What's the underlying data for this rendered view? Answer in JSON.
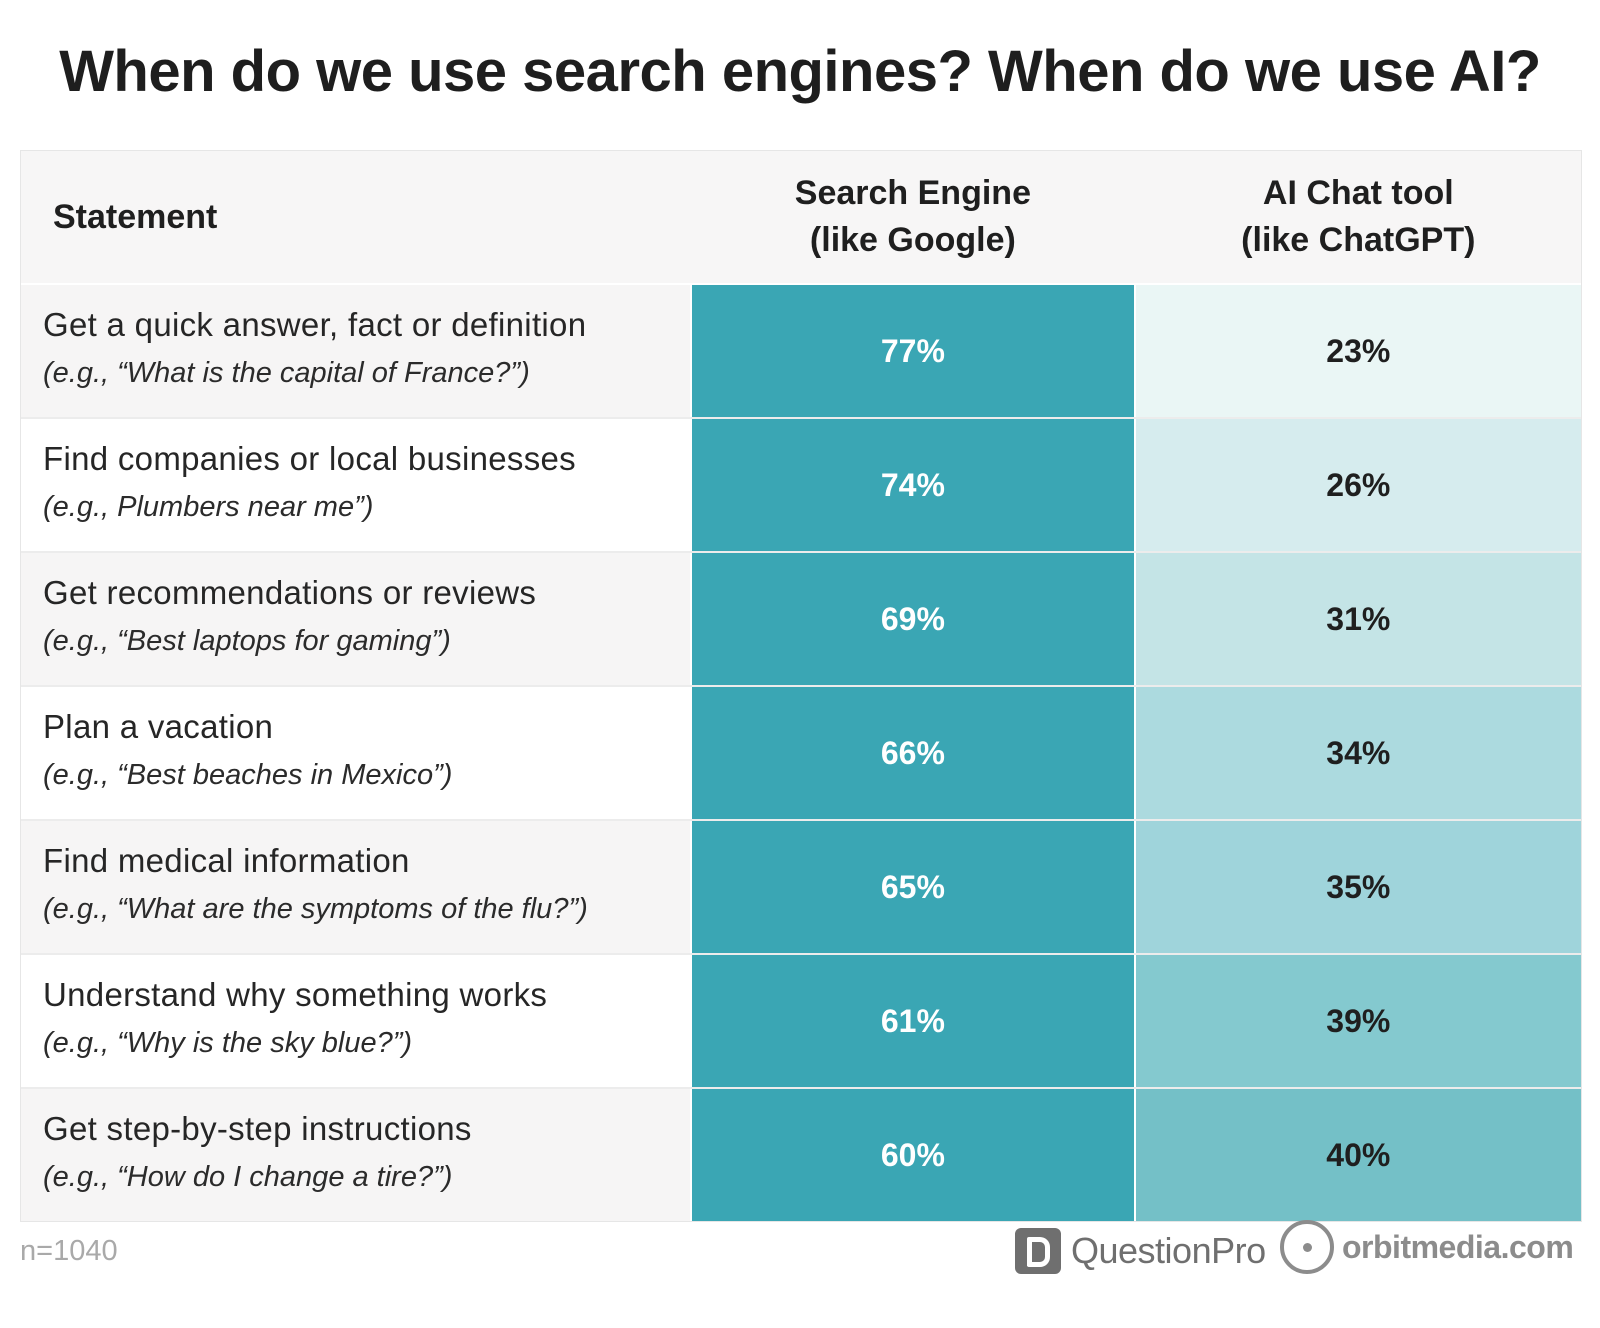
{
  "title": "When do we use search engines? When do we use AI?",
  "header": {
    "statement": "Statement",
    "search_engine_line1": "Search Engine",
    "search_engine_line2": "(like Google)",
    "ai_line1": "AI Chat tool",
    "ai_line2": "(like ChatGPT)"
  },
  "rows": [
    {
      "statement": "Get a quick answer, fact or definition",
      "example": "(e.g., “What is the capital of France?”)",
      "search_engine": "77%",
      "ai": "23%",
      "se_color": "#3aa6b4",
      "ai_color": "#eaf6f5"
    },
    {
      "statement": "Find companies or local businesses",
      "example": "(e.g., Plumbers near me”)",
      "search_engine": "74%",
      "ai": "26%",
      "se_color": "#3aa6b4",
      "ai_color": "#d6ecee"
    },
    {
      "statement": "Get recommendations or reviews",
      "example": "(e.g., “Best laptops for gaming”)",
      "search_engine": "69%",
      "ai": "31%",
      "se_color": "#3aa6b4",
      "ai_color": "#c4e4e6"
    },
    {
      "statement": "Plan a vacation",
      "example": "(e.g., “Best beaches in Mexico”)",
      "search_engine": "66%",
      "ai": "34%",
      "se_color": "#3aa6b4",
      "ai_color": "#acdadf"
    },
    {
      "statement": "Find medical information",
      "example": "(e.g., “What are the symptoms of the flu?”)",
      "search_engine": "65%",
      "ai": "35%",
      "se_color": "#3aa6b4",
      "ai_color": "#9fd4db"
    },
    {
      "statement": "Understand why something works",
      "example": "(e.g., “Why is the sky blue?”)",
      "search_engine": "61%",
      "ai": "39%",
      "se_color": "#3aa6b4",
      "ai_color": "#84c9cf"
    },
    {
      "statement": "Get step-by-step instructions",
      "example": "(e.g., “How do I change a tire?”)",
      "search_engine": "60%",
      "ai": "40%",
      "se_color": "#3aa6b4",
      "ai_color": "#74c0c7"
    }
  ],
  "footer": {
    "n": "n=1040",
    "questionpro": "QuestionPro",
    "orbitmedia": "orbitmedia.com"
  },
  "chart_data": {
    "type": "table",
    "title": "When do we use search engines? When do we use AI?",
    "columns": [
      "Statement",
      "Search Engine (like Google)",
      "AI Chat tool (like ChatGPT)"
    ],
    "categories": [
      "Get a quick answer, fact or definition",
      "Find companies or local businesses",
      "Get recommendations or reviews",
      "Plan a vacation",
      "Find medical information",
      "Understand why something works",
      "Get step-by-step instructions"
    ],
    "series": [
      {
        "name": "Search Engine (like Google)",
        "values": [
          77,
          74,
          69,
          66,
          65,
          61,
          60
        ]
      },
      {
        "name": "AI Chat tool (like ChatGPT)",
        "values": [
          23,
          26,
          31,
          34,
          35,
          39,
          40
        ]
      }
    ],
    "unit": "%",
    "note": "n=1040"
  }
}
